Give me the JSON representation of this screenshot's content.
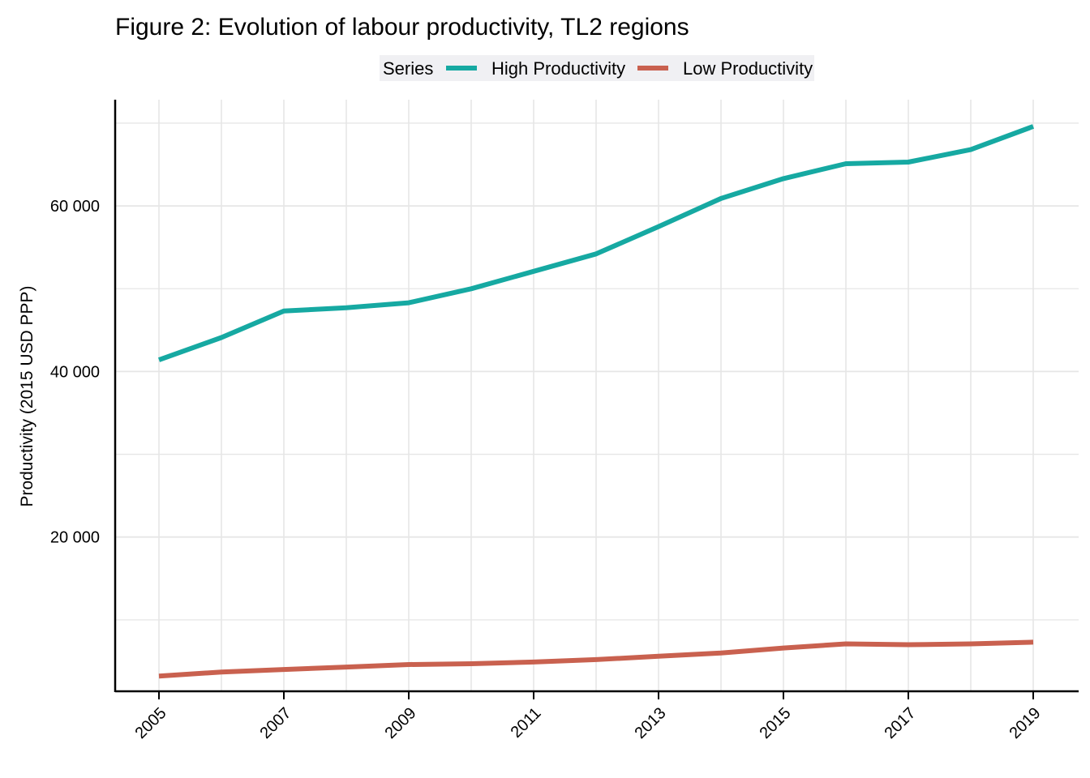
{
  "chart_data": {
    "type": "line",
    "title": "Figure 2: Evolution of labour productivity, TL2 regions",
    "xlabel": "",
    "ylabel": "Productivity (2015 USD PPP)",
    "legend": {
      "title": "Series",
      "position": "top-center"
    },
    "x": [
      2005,
      2006,
      2007,
      2008,
      2009,
      2010,
      2011,
      2012,
      2013,
      2014,
      2015,
      2016,
      2017,
      2018,
      2019
    ],
    "x_tick_labels": [
      "2005",
      "2007",
      "2009",
      "2011",
      "2013",
      "2015",
      "2017",
      "2019"
    ],
    "xlim": [
      2004.7,
      2020.4
    ],
    "ylim": [
      0,
      71000
    ],
    "y_ticks": [
      20000,
      40000,
      60000
    ],
    "y_tick_labels": [
      "20 000",
      "40 000",
      "60 000"
    ],
    "y_minor_gridlines": [
      10000,
      30000,
      50000,
      70000
    ],
    "grid": true,
    "series": [
      {
        "name": "High Productivity",
        "color": "#16a9a2",
        "values": [
          41400,
          44100,
          47300,
          47700,
          48300,
          50000,
          52100,
          54200,
          57500,
          60900,
          63300,
          65100,
          65300,
          66800,
          69600
        ]
      },
      {
        "name": "Low Productivity",
        "color": "#c9614f",
        "values": [
          3200,
          3700,
          4000,
          4300,
          4600,
          4700,
          4900,
          5200,
          5600,
          6000,
          6600,
          7100,
          7000,
          7100,
          7300
        ]
      }
    ]
  }
}
